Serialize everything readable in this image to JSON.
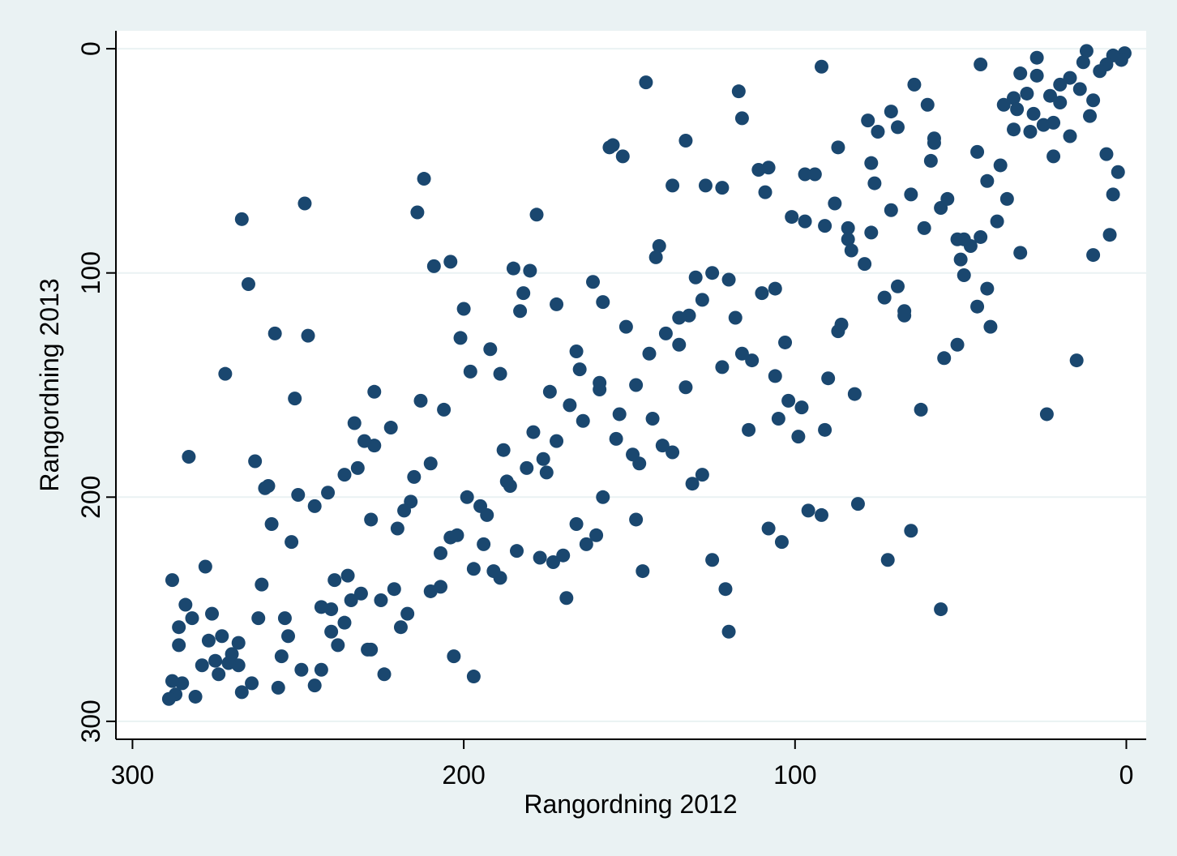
{
  "chart_data": {
    "type": "scatter",
    "x_label": "Rangordning 2012",
    "y_label": "Rangordning 2013",
    "color": "#1a476f",
    "grid": true,
    "xlim": [
      305,
      -6
    ],
    "ylim": [
      -8,
      308
    ],
    "xticks": [
      300,
      200,
      100,
      0
    ],
    "yticks": [
      0,
      100,
      200,
      300
    ],
    "x": [
      12,
      4,
      0.5,
      1.5,
      6,
      8,
      13,
      27,
      27,
      32,
      44,
      92,
      145,
      117,
      116,
      14,
      17,
      20,
      23,
      20,
      10,
      37,
      34,
      30,
      33,
      28,
      25,
      22,
      29,
      34,
      11,
      17,
      22,
      6,
      2.5,
      4,
      5,
      10,
      15,
      24,
      32,
      38,
      45,
      42,
      36,
      39,
      44,
      47,
      49,
      51,
      50,
      49,
      42,
      45,
      41,
      51,
      55,
      56,
      56,
      54,
      58,
      58,
      59,
      60,
      64,
      71,
      69,
      75,
      78,
      77,
      76,
      65,
      71,
      77,
      61,
      79,
      69,
      73,
      67,
      67,
      87,
      88,
      91,
      97,
      94,
      101,
      97,
      84,
      84,
      83,
      86,
      87,
      82,
      90,
      91,
      81,
      92,
      96,
      65,
      72,
      62,
      98,
      102,
      99,
      103,
      106,
      105,
      106,
      110,
      108,
      111,
      109,
      104,
      108,
      113,
      116,
      114,
      118,
      120,
      122,
      127,
      125,
      130,
      128,
      132,
      135,
      135,
      139,
      122,
      125,
      121,
      120,
      128,
      131,
      133,
      137,
      141,
      142,
      144,
      143,
      140,
      137,
      133,
      147,
      149,
      148,
      148,
      146,
      151,
      152,
      155,
      156,
      153,
      154,
      158,
      159,
      159,
      161,
      158,
      160,
      163,
      164,
      165,
      166,
      166,
      168,
      169,
      170,
      172,
      172,
      173,
      174,
      175,
      176,
      177,
      178,
      179,
      180,
      182,
      183,
      181,
      184,
      185,
      186,
      187,
      188,
      189,
      189,
      191,
      192,
      193,
      194,
      195,
      197,
      197,
      198,
      199,
      200,
      201,
      203,
      202,
      204,
      204,
      207,
      207,
      209,
      210,
      210,
      206,
      212,
      214,
      213,
      215,
      216,
      217,
      218,
      219,
      220,
      221,
      222,
      224,
      225,
      228,
      227,
      227,
      228,
      229,
      231,
      232,
      230,
      233,
      234,
      235,
      236,
      236,
      238,
      239,
      240,
      240,
      241,
      243,
      243,
      245,
      245,
      247,
      248,
      249,
      250,
      251,
      252,
      253,
      254,
      255,
      256,
      257,
      258,
      259,
      260,
      261,
      262,
      263,
      264,
      265,
      267,
      267,
      268,
      268,
      270,
      271,
      272,
      273,
      274,
      275,
      276,
      277,
      278,
      279,
      281,
      282,
      283,
      284,
      285,
      286,
      286,
      287,
      288,
      288,
      289
    ],
    "values": [
      1,
      3,
      2,
      5,
      7,
      10,
      6,
      4,
      12,
      11,
      7,
      8,
      15,
      19,
      31,
      18,
      13,
      16,
      21,
      24,
      23,
      25,
      22,
      20,
      27,
      29,
      34,
      33,
      37,
      36,
      30,
      39,
      48,
      47,
      55,
      65,
      83,
      92,
      139,
      163,
      91,
      52,
      46,
      59,
      67,
      77,
      84,
      88,
      85,
      85,
      94,
      101,
      107,
      115,
      124,
      132,
      138,
      250,
      71,
      67,
      40,
      42,
      50,
      25,
      16,
      28,
      35,
      37,
      32,
      51,
      60,
      65,
      72,
      82,
      80,
      96,
      106,
      111,
      117,
      119,
      44,
      69,
      79,
      56,
      56,
      75,
      77,
      80,
      85,
      90,
      123,
      126,
      154,
      147,
      170,
      203,
      208,
      206,
      215,
      228,
      161,
      160,
      157,
      173,
      131,
      146,
      165,
      107,
      109,
      53,
      54,
      64,
      220,
      214,
      139,
      136,
      170,
      120,
      103,
      62,
      61,
      100,
      102,
      112,
      119,
      120,
      132,
      127,
      142,
      228,
      241,
      260,
      190,
      194,
      41,
      61,
      88,
      93,
      136,
      165,
      177,
      180,
      151,
      185,
      181,
      150,
      210,
      233,
      124,
      48,
      43,
      44,
      163,
      174,
      113,
      149,
      152,
      104,
      200,
      217,
      221,
      166,
      143,
      135,
      212,
      159,
      245,
      226,
      114,
      175,
      229,
      153,
      189,
      183,
      227,
      74,
      171,
      99,
      109,
      117,
      187,
      224,
      98,
      195,
      193,
      179,
      145,
      236,
      233,
      134,
      208,
      221,
      204,
      280,
      232,
      144,
      200,
      116,
      129,
      271,
      217,
      95,
      218,
      225,
      240,
      97,
      242,
      185,
      161,
      58,
      73,
      157,
      191,
      202,
      252,
      206,
      258,
      214,
      241,
      169,
      279,
      246,
      210,
      177,
      153,
      268,
      268,
      243,
      187,
      175,
      167,
      246,
      235,
      256,
      190,
      266,
      237,
      250,
      260,
      198,
      277,
      249,
      204,
      284,
      128,
      69,
      277,
      199,
      156,
      220,
      262,
      254,
      271,
      285,
      127,
      212,
      195,
      196,
      239,
      254,
      184,
      283,
      105,
      76,
      287,
      275,
      265,
      270,
      274,
      145,
      262,
      279,
      273,
      252,
      264,
      231,
      275,
      289,
      254,
      182,
      248,
      283,
      258,
      266,
      288,
      282,
      237,
      290
    ]
  }
}
